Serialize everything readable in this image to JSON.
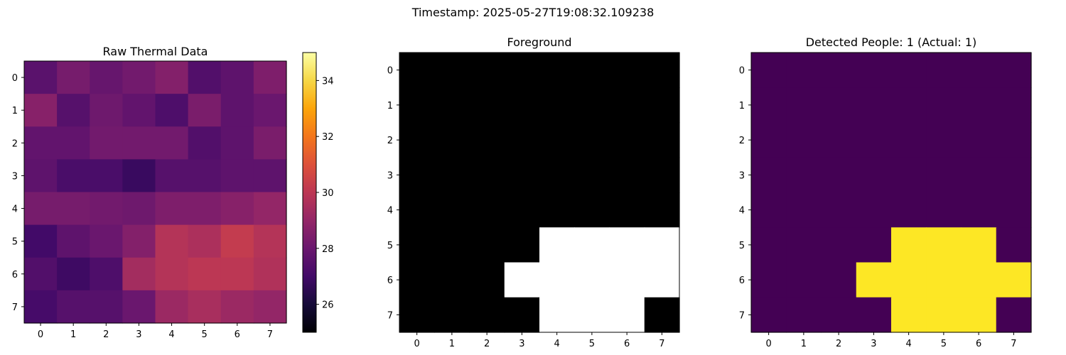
{
  "suptitle": "Timestamp: 2025-05-27T19:08:32.109238",
  "chart_data": [
    {
      "type": "heatmap",
      "title": "Raw Thermal Data",
      "colormap": "inferno",
      "vmin": 25,
      "vmax": 35,
      "x_ticks": [
        "0",
        "1",
        "2",
        "3",
        "4",
        "5",
        "6",
        "7"
      ],
      "y_ticks": [
        "0",
        "1",
        "2",
        "3",
        "4",
        "5",
        "6",
        "7"
      ],
      "colorbar": {
        "ticks": [
          26,
          28,
          30,
          32,
          34
        ],
        "tick_labels": [
          "26",
          "28",
          "30",
          "32",
          "34"
        ]
      },
      "values": [
        [
          27.6,
          28.3,
          27.9,
          28.2,
          28.6,
          27.4,
          27.7,
          28.5
        ],
        [
          28.7,
          27.5,
          28.1,
          27.8,
          27.3,
          28.4,
          27.7,
          28.0
        ],
        [
          27.8,
          27.8,
          28.2,
          28.2,
          28.2,
          27.4,
          27.7,
          28.4
        ],
        [
          27.7,
          27.2,
          27.2,
          26.8,
          27.5,
          27.5,
          27.7,
          27.7
        ],
        [
          28.3,
          28.3,
          28.2,
          28.1,
          28.5,
          28.5,
          28.7,
          29.0
        ],
        [
          27.0,
          27.7,
          28.0,
          28.6,
          29.8,
          29.6,
          30.2,
          29.8
        ],
        [
          27.4,
          26.9,
          27.3,
          29.4,
          29.8,
          30.0,
          30.0,
          29.7
        ],
        [
          27.1,
          27.5,
          27.5,
          28.0,
          29.2,
          29.5,
          29.2,
          29.0
        ]
      ]
    },
    {
      "type": "heatmap",
      "title": "Foreground",
      "colormap": "gray",
      "x_ticks": [
        "0",
        "1",
        "2",
        "3",
        "4",
        "5",
        "6",
        "7"
      ],
      "y_ticks": [
        "0",
        "1",
        "2",
        "3",
        "4",
        "5",
        "6",
        "7"
      ],
      "values": [
        [
          0,
          0,
          0,
          0,
          0,
          0,
          0,
          0
        ],
        [
          0,
          0,
          0,
          0,
          0,
          0,
          0,
          0
        ],
        [
          0,
          0,
          0,
          0,
          0,
          0,
          0,
          0
        ],
        [
          0,
          0,
          0,
          0,
          0,
          0,
          0,
          0
        ],
        [
          0,
          0,
          0,
          0,
          0,
          0,
          0,
          0
        ],
        [
          0,
          0,
          0,
          0,
          1,
          1,
          1,
          1
        ],
        [
          0,
          0,
          0,
          1,
          1,
          1,
          1,
          1
        ],
        [
          0,
          0,
          0,
          0,
          1,
          1,
          1,
          0
        ]
      ]
    },
    {
      "type": "heatmap",
      "title": "Detected People: 1 (Actual: 1)",
      "colormap": "viridis",
      "x_ticks": [
        "0",
        "1",
        "2",
        "3",
        "4",
        "5",
        "6",
        "7"
      ],
      "y_ticks": [
        "0",
        "1",
        "2",
        "3",
        "4",
        "5",
        "6",
        "7"
      ],
      "values": [
        [
          0,
          0,
          0,
          0,
          0,
          0,
          0,
          0
        ],
        [
          0,
          0,
          0,
          0,
          0,
          0,
          0,
          0
        ],
        [
          0,
          0,
          0,
          0,
          0,
          0,
          0,
          0
        ],
        [
          0,
          0,
          0,
          0,
          0,
          0,
          0,
          0
        ],
        [
          0,
          0,
          0,
          0,
          0,
          0,
          0,
          0
        ],
        [
          0,
          0,
          0,
          0,
          1,
          1,
          1,
          0
        ],
        [
          0,
          0,
          0,
          1,
          1,
          1,
          1,
          1
        ],
        [
          0,
          0,
          0,
          0,
          1,
          1,
          1,
          0
        ]
      ]
    }
  ]
}
